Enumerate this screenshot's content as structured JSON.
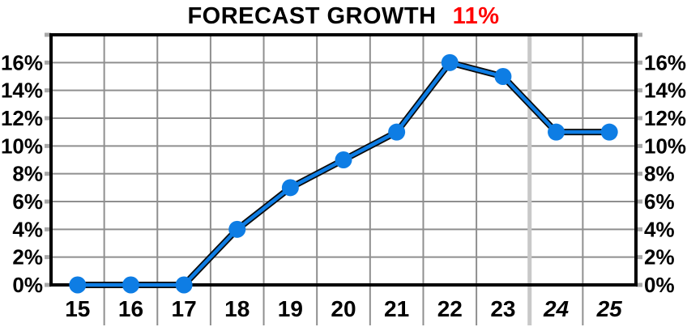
{
  "title": {
    "text": "FORECAST GROWTH",
    "highlight": "11%"
  },
  "chart_data": {
    "type": "line",
    "title": "FORECAST GROWTH 11%",
    "categories": [
      "15",
      "16",
      "17",
      "18",
      "19",
      "20",
      "21",
      "22",
      "23",
      "24",
      "25"
    ],
    "values": [
      0,
      0,
      0,
      4,
      7,
      9,
      11,
      16,
      15,
      11,
      11
    ],
    "italic_categories": [
      "24",
      "25"
    ],
    "ylim": [
      0,
      18
    ],
    "ytick_step": 2,
    "ytick_labels": [
      "0%",
      "2%",
      "4%",
      "6%",
      "8%",
      "10%",
      "12%",
      "14%",
      "16%"
    ],
    "ytick_values": [
      0,
      2,
      4,
      6,
      8,
      10,
      12,
      14,
      16
    ],
    "y_axis_sides": [
      "left",
      "right"
    ],
    "grid": true,
    "separator_after_category": "23",
    "legend": "none",
    "colors": {
      "line": "#0e7de4",
      "line_outline": "#0a0a0a",
      "marker": "#0e7de4",
      "title_text": "#000000",
      "title_highlight": "#ff0000",
      "grid": "#8f8f8f",
      "frame": "#000000",
      "separator": "#c8c8c8",
      "tick": "#a8a8a8",
      "background": "#ffffff"
    }
  }
}
